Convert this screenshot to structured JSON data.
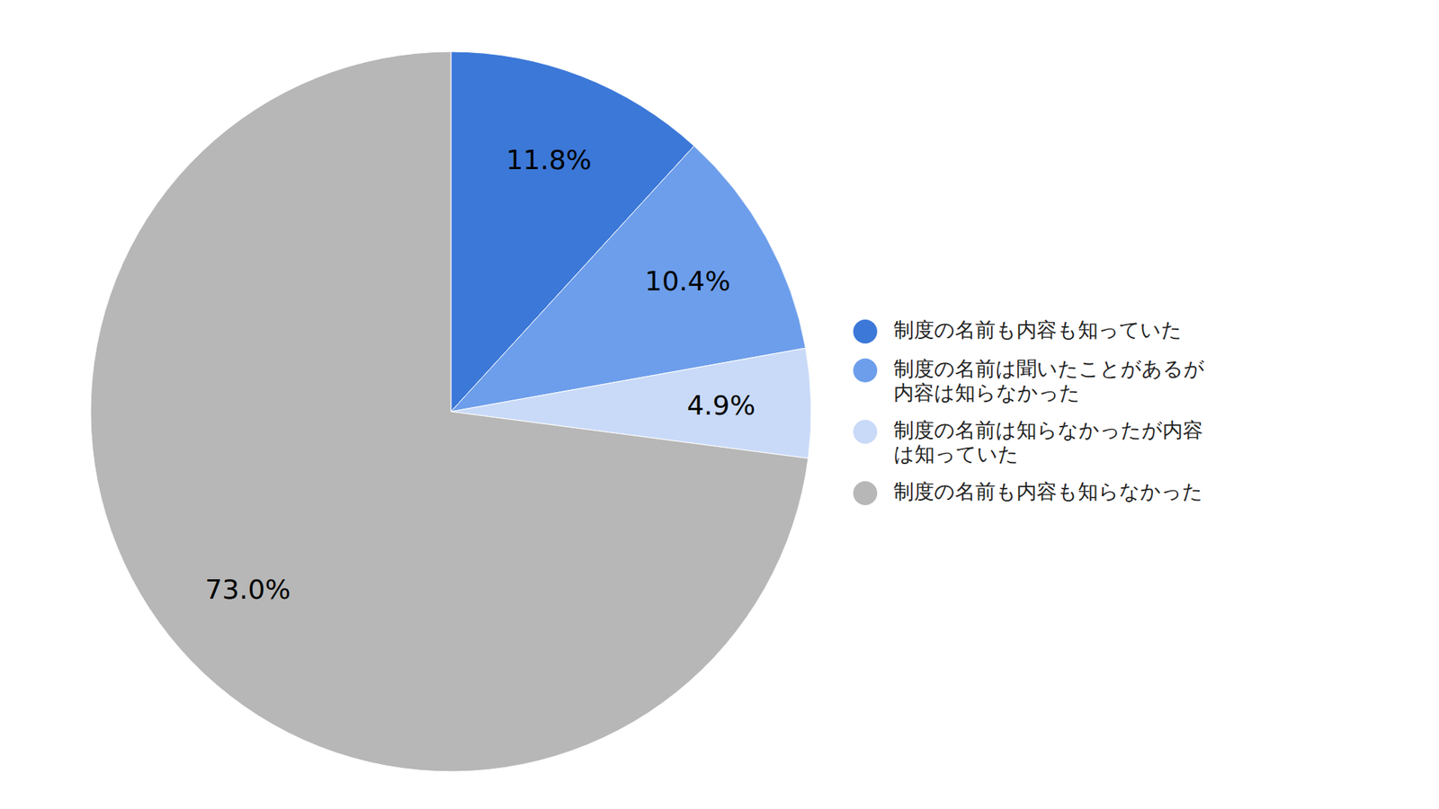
{
  "chart_data": {
    "type": "pie",
    "categories": [
      "制度の名前も内容も知っていた",
      "制度の名前は聞いたことがあるが内容は知らなかった",
      "制度の名前は知らなかったが内容は知っていた",
      "制度の名前も内容も知らなかった"
    ],
    "values": [
      11.8,
      10.4,
      4.9,
      73.0
    ],
    "value_labels": [
      "11.8%",
      "10.4%",
      "4.9%",
      "73.0%"
    ],
    "colors": [
      "#3c78d8",
      "#6d9eeb",
      "#c9daf8",
      "#b7b7b7"
    ],
    "data_labels": true,
    "legend": "right"
  }
}
